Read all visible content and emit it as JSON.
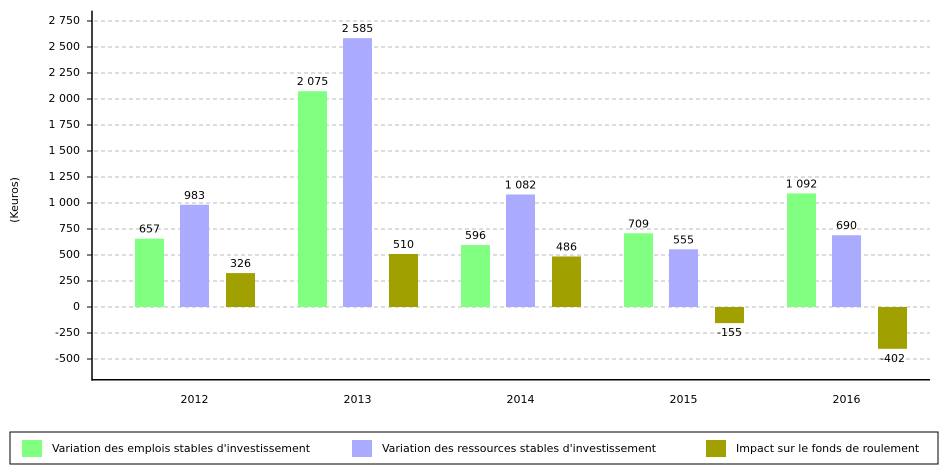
{
  "chart_data": {
    "type": "bar",
    "y_label": "(Keuros)",
    "categories": [
      "2012",
      "2013",
      "2014",
      "2015",
      "2016"
    ],
    "series": [
      {
        "name": "Variation des emplois stables d'investissement",
        "color": "#80ff80",
        "values": [
          657,
          2075,
          596,
          709,
          1092
        ],
        "value_labels": [
          "657",
          "2 075",
          "596",
          "709",
          "1 092"
        ]
      },
      {
        "name": "Variation des ressources stables d'investissement",
        "color": "#aaaaff",
        "values": [
          983,
          2585,
          1082,
          555,
          690
        ],
        "value_labels": [
          "983",
          "2 585",
          "1 082",
          "555",
          "690"
        ]
      },
      {
        "name": "Impact sur le fonds de roulement",
        "color": "#a0a000",
        "values": [
          326,
          510,
          486,
          -155,
          -402
        ],
        "value_labels": [
          "326",
          "510",
          "486",
          "-155",
          "-402"
        ]
      }
    ],
    "ylim": [
      -700,
      2850
    ],
    "yticks": [
      {
        "value": 2750,
        "label": "2 750"
      },
      {
        "value": 2500,
        "label": "2 500"
      },
      {
        "value": 2250,
        "label": "2 250"
      },
      {
        "value": 2000,
        "label": "2 000"
      },
      {
        "value": 1750,
        "label": "1 750"
      },
      {
        "value": 1500,
        "label": "1 500"
      },
      {
        "value": 1250,
        "label": "1 250"
      },
      {
        "value": 1000,
        "label": "1 000"
      },
      750,
      500,
      250,
      0,
      -250,
      -500
    ],
    "grid": true
  }
}
